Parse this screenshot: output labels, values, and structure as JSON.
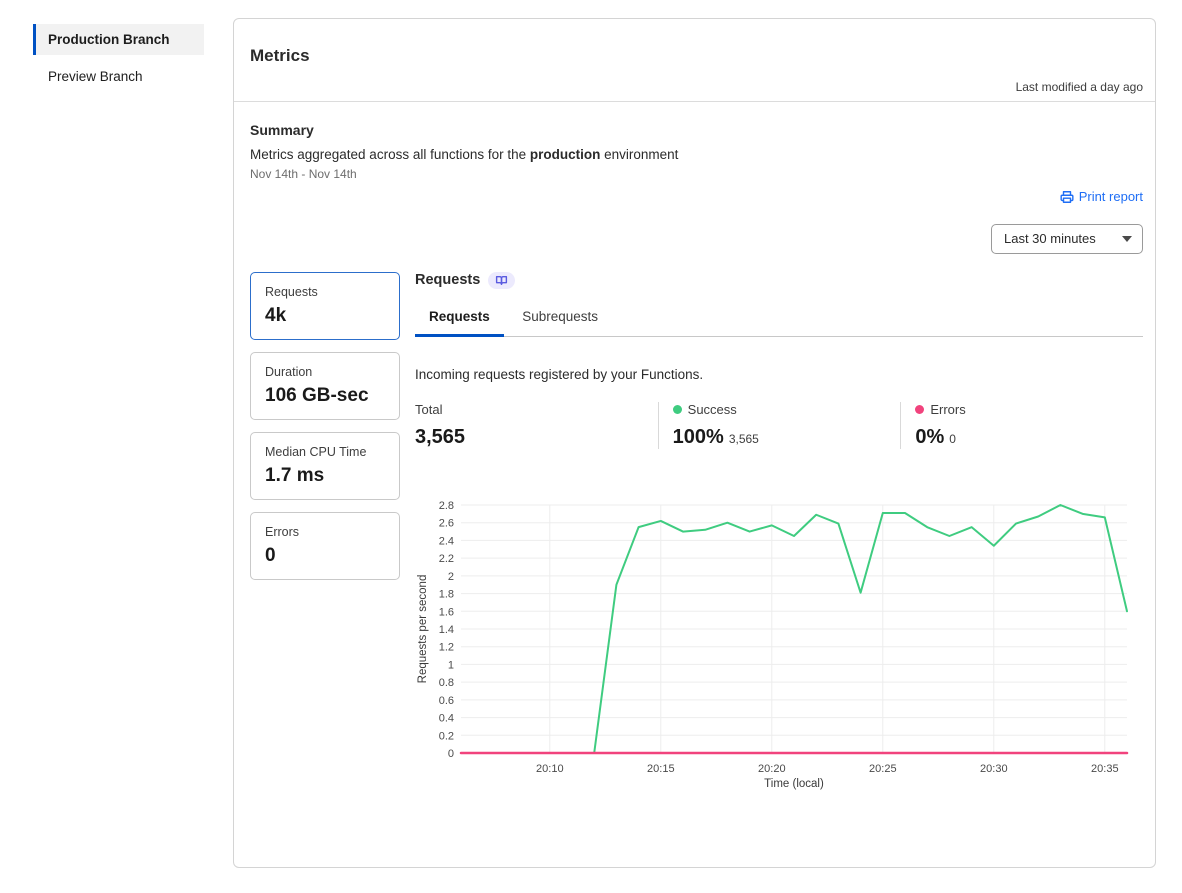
{
  "colors": {
    "accent_blue": "#0051c3",
    "link_blue": "#1f6ef5",
    "success_green": "#3fcc80",
    "error_pink": "#f1437d"
  },
  "sidebar": {
    "items": [
      {
        "label": "Production Branch",
        "active": true
      },
      {
        "label": "Preview Branch",
        "active": false
      }
    ]
  },
  "header": {
    "title": "Metrics",
    "last_modified": "Last modified a day ago"
  },
  "summary": {
    "title": "Summary",
    "description_prefix": "Metrics aggregated across all functions for the ",
    "environment": "production",
    "description_suffix": " environment",
    "date_range": "Nov 14th - Nov 14th",
    "print_report_label": "Print report",
    "time_range_value": "Last 30 minutes"
  },
  "stat_cards": [
    {
      "label": "Requests",
      "value": "4k",
      "selected": true
    },
    {
      "label": "Duration",
      "value": "106 GB-sec",
      "selected": false
    },
    {
      "label": "Median CPU Time",
      "value": "1.7 ms",
      "selected": false
    },
    {
      "label": "Errors",
      "value": "0",
      "selected": false
    }
  ],
  "panel": {
    "title": "Requests",
    "doc_icon": "book-icon",
    "tabs": [
      {
        "label": "Requests",
        "active": true
      },
      {
        "label": "Subrequests",
        "active": false
      }
    ],
    "description": "Incoming requests registered by your Functions.",
    "stats": {
      "total": {
        "label": "Total",
        "value": "3,565"
      },
      "success": {
        "label": "Success",
        "value": "100%",
        "sub": "3,565",
        "dot_color": "#3fcc80"
      },
      "errors": {
        "label": "Errors",
        "value": "0%",
        "sub": "0",
        "dot_color": "#f1437d"
      }
    }
  },
  "chart_data": {
    "type": "line",
    "x": [
      "20:06",
      "20:07",
      "20:08",
      "20:09",
      "20:10",
      "20:11",
      "20:12",
      "20:13",
      "20:14",
      "20:15",
      "20:16",
      "20:17",
      "20:18",
      "20:19",
      "20:20",
      "20:21",
      "20:22",
      "20:23",
      "20:24",
      "20:25",
      "20:26",
      "20:27",
      "20:28",
      "20:29",
      "20:30",
      "20:31",
      "20:32",
      "20:33",
      "20:34",
      "20:35",
      "20:36"
    ],
    "series": [
      {
        "name": "Success",
        "color": "#3fcc80",
        "values": [
          0,
          0,
          0,
          0,
          0,
          0,
          0,
          1.9,
          2.55,
          2.62,
          2.5,
          2.52,
          2.6,
          2.5,
          2.57,
          2.45,
          2.69,
          2.59,
          1.81,
          2.71,
          2.71,
          2.55,
          2.45,
          2.55,
          2.34,
          2.59,
          2.67,
          2.8,
          2.7,
          2.66,
          1.6
        ]
      },
      {
        "name": "Errors",
        "color": "#f1437d",
        "values": [
          0,
          0,
          0,
          0,
          0,
          0,
          0,
          0,
          0,
          0,
          0,
          0,
          0,
          0,
          0,
          0,
          0,
          0,
          0,
          0,
          0,
          0,
          0,
          0,
          0,
          0,
          0,
          0,
          0,
          0,
          0
        ]
      }
    ],
    "xlabel": "Time (local)",
    "ylabel": "Requests per second",
    "ylim": [
      0,
      2.8
    ],
    "ytick_step": 0.2,
    "xticks": [
      "20:10",
      "20:15",
      "20:20",
      "20:25",
      "20:30",
      "20:35"
    ],
    "grid": true,
    "legend_position": "none"
  }
}
